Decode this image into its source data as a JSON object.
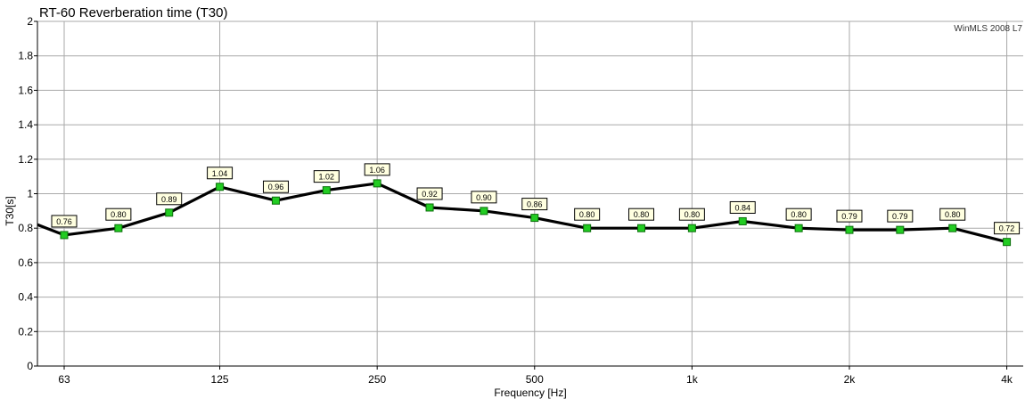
{
  "chart_data": {
    "type": "line",
    "title": "RT-60 Reverberation time (T30)",
    "watermark": "WinMLS 2008 L7",
    "xlabel": "Frequency [Hz]",
    "ylabel": "T30[s]",
    "ylim": [
      0,
      2
    ],
    "y_ticks": [
      0,
      0.2,
      0.4,
      0.6,
      0.8,
      1,
      1.2,
      1.4,
      1.6,
      1.8,
      2
    ],
    "y_tick_labels": [
      "0",
      "0.2",
      "0.4",
      "0.6",
      "0.8",
      "1",
      "1.2",
      "1.4",
      "1.6",
      "1.8",
      "2"
    ],
    "x_scale": "log",
    "xlim": [
      56,
      4300
    ],
    "x_ticks": [
      63,
      125,
      250,
      500,
      1000,
      2000,
      4000
    ],
    "x_tick_labels": [
      "63",
      "125",
      "250",
      "500",
      "1k",
      "2k",
      "4k"
    ],
    "grid": true,
    "series": [
      {
        "color": "#000000",
        "marker_color": "#22cc22",
        "x": [
          63,
          80,
          100,
          125,
          160,
          200,
          250,
          315,
          400,
          500,
          630,
          800,
          1000,
          1250,
          1600,
          2000,
          2500,
          3150,
          4000
        ],
        "values": [
          0.76,
          0.8,
          0.89,
          1.04,
          0.96,
          1.02,
          1.06,
          0.92,
          0.9,
          0.86,
          0.8,
          0.8,
          0.8,
          0.84,
          0.8,
          0.79,
          0.79,
          0.8,
          0.72
        ],
        "labels": [
          "0.76",
          "0.80",
          "0.89",
          "1.04",
          "0.96",
          "1.02",
          "1.06",
          "0.92",
          "0.90",
          "0.86",
          "0.80",
          "0.80",
          "0.80",
          "0.84",
          "0.80",
          "0.79",
          "0.79",
          "0.80",
          "0.72"
        ]
      }
    ],
    "line_enters_from_left_value": 0.82
  }
}
